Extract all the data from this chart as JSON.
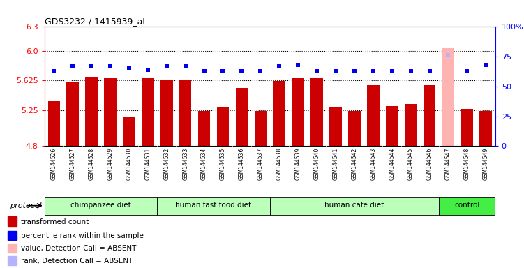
{
  "title": "GDS3232 / 1415939_at",
  "samples": [
    "GSM144526",
    "GSM144527",
    "GSM144528",
    "GSM144529",
    "GSM144530",
    "GSM144531",
    "GSM144532",
    "GSM144533",
    "GSM144534",
    "GSM144535",
    "GSM144536",
    "GSM144537",
    "GSM144538",
    "GSM144539",
    "GSM144540",
    "GSM144541",
    "GSM144542",
    "GSM144543",
    "GSM144544",
    "GSM144545",
    "GSM144546",
    "GSM144547",
    "GSM144548",
    "GSM144549"
  ],
  "bar_values": [
    5.37,
    5.61,
    5.66,
    5.65,
    5.165,
    5.655,
    5.625,
    5.625,
    5.245,
    5.295,
    5.535,
    5.245,
    5.615,
    5.655,
    5.655,
    5.295,
    5.245,
    5.565,
    5.3,
    5.33,
    5.565,
    6.03,
    5.27,
    5.245
  ],
  "blue_values": [
    63,
    67,
    67,
    67,
    65,
    64,
    67,
    67,
    63,
    63,
    63,
    63,
    67,
    68,
    63,
    63,
    63,
    63,
    63,
    63,
    63,
    76,
    63,
    68
  ],
  "absent_bar_indices": [
    21
  ],
  "absent_blue_indices": [
    21
  ],
  "bar_color": "#cc0000",
  "absent_bar_color": "#ffb3b3",
  "blue_color": "#0000ee",
  "absent_blue_color": "#b3b3ff",
  "ylim_left": [
    4.8,
    6.3
  ],
  "ylim_right": [
    0,
    100
  ],
  "yticks_left": [
    4.8,
    5.25,
    5.625,
    6.0,
    6.3
  ],
  "yticks_right": [
    0,
    25,
    50,
    75,
    100
  ],
  "ytick_labels_right": [
    "0",
    "25",
    "50",
    "75",
    "100%"
  ],
  "grid_values": [
    6.0,
    5.625,
    5.25
  ],
  "groups": [
    {
      "label": "chimpanzee diet",
      "start": 0,
      "end": 5
    },
    {
      "label": "human fast food diet",
      "start": 6,
      "end": 11
    },
    {
      "label": "human cafe diet",
      "start": 12,
      "end": 20
    },
    {
      "label": "control",
      "start": 21,
      "end": 23
    }
  ],
  "group_colors": [
    "#bbffbb",
    "#bbffbb",
    "#bbffbb",
    "#44ee44"
  ],
  "protocol_label": "protocol",
  "tick_bg_color": "#cccccc",
  "legend_items": [
    {
      "label": "transformed count",
      "color": "#cc0000"
    },
    {
      "label": "percentile rank within the sample",
      "color": "#0000ee"
    },
    {
      "label": "value, Detection Call = ABSENT",
      "color": "#ffb3b3"
    },
    {
      "label": "rank, Detection Call = ABSENT",
      "color": "#b3b3ff"
    }
  ]
}
